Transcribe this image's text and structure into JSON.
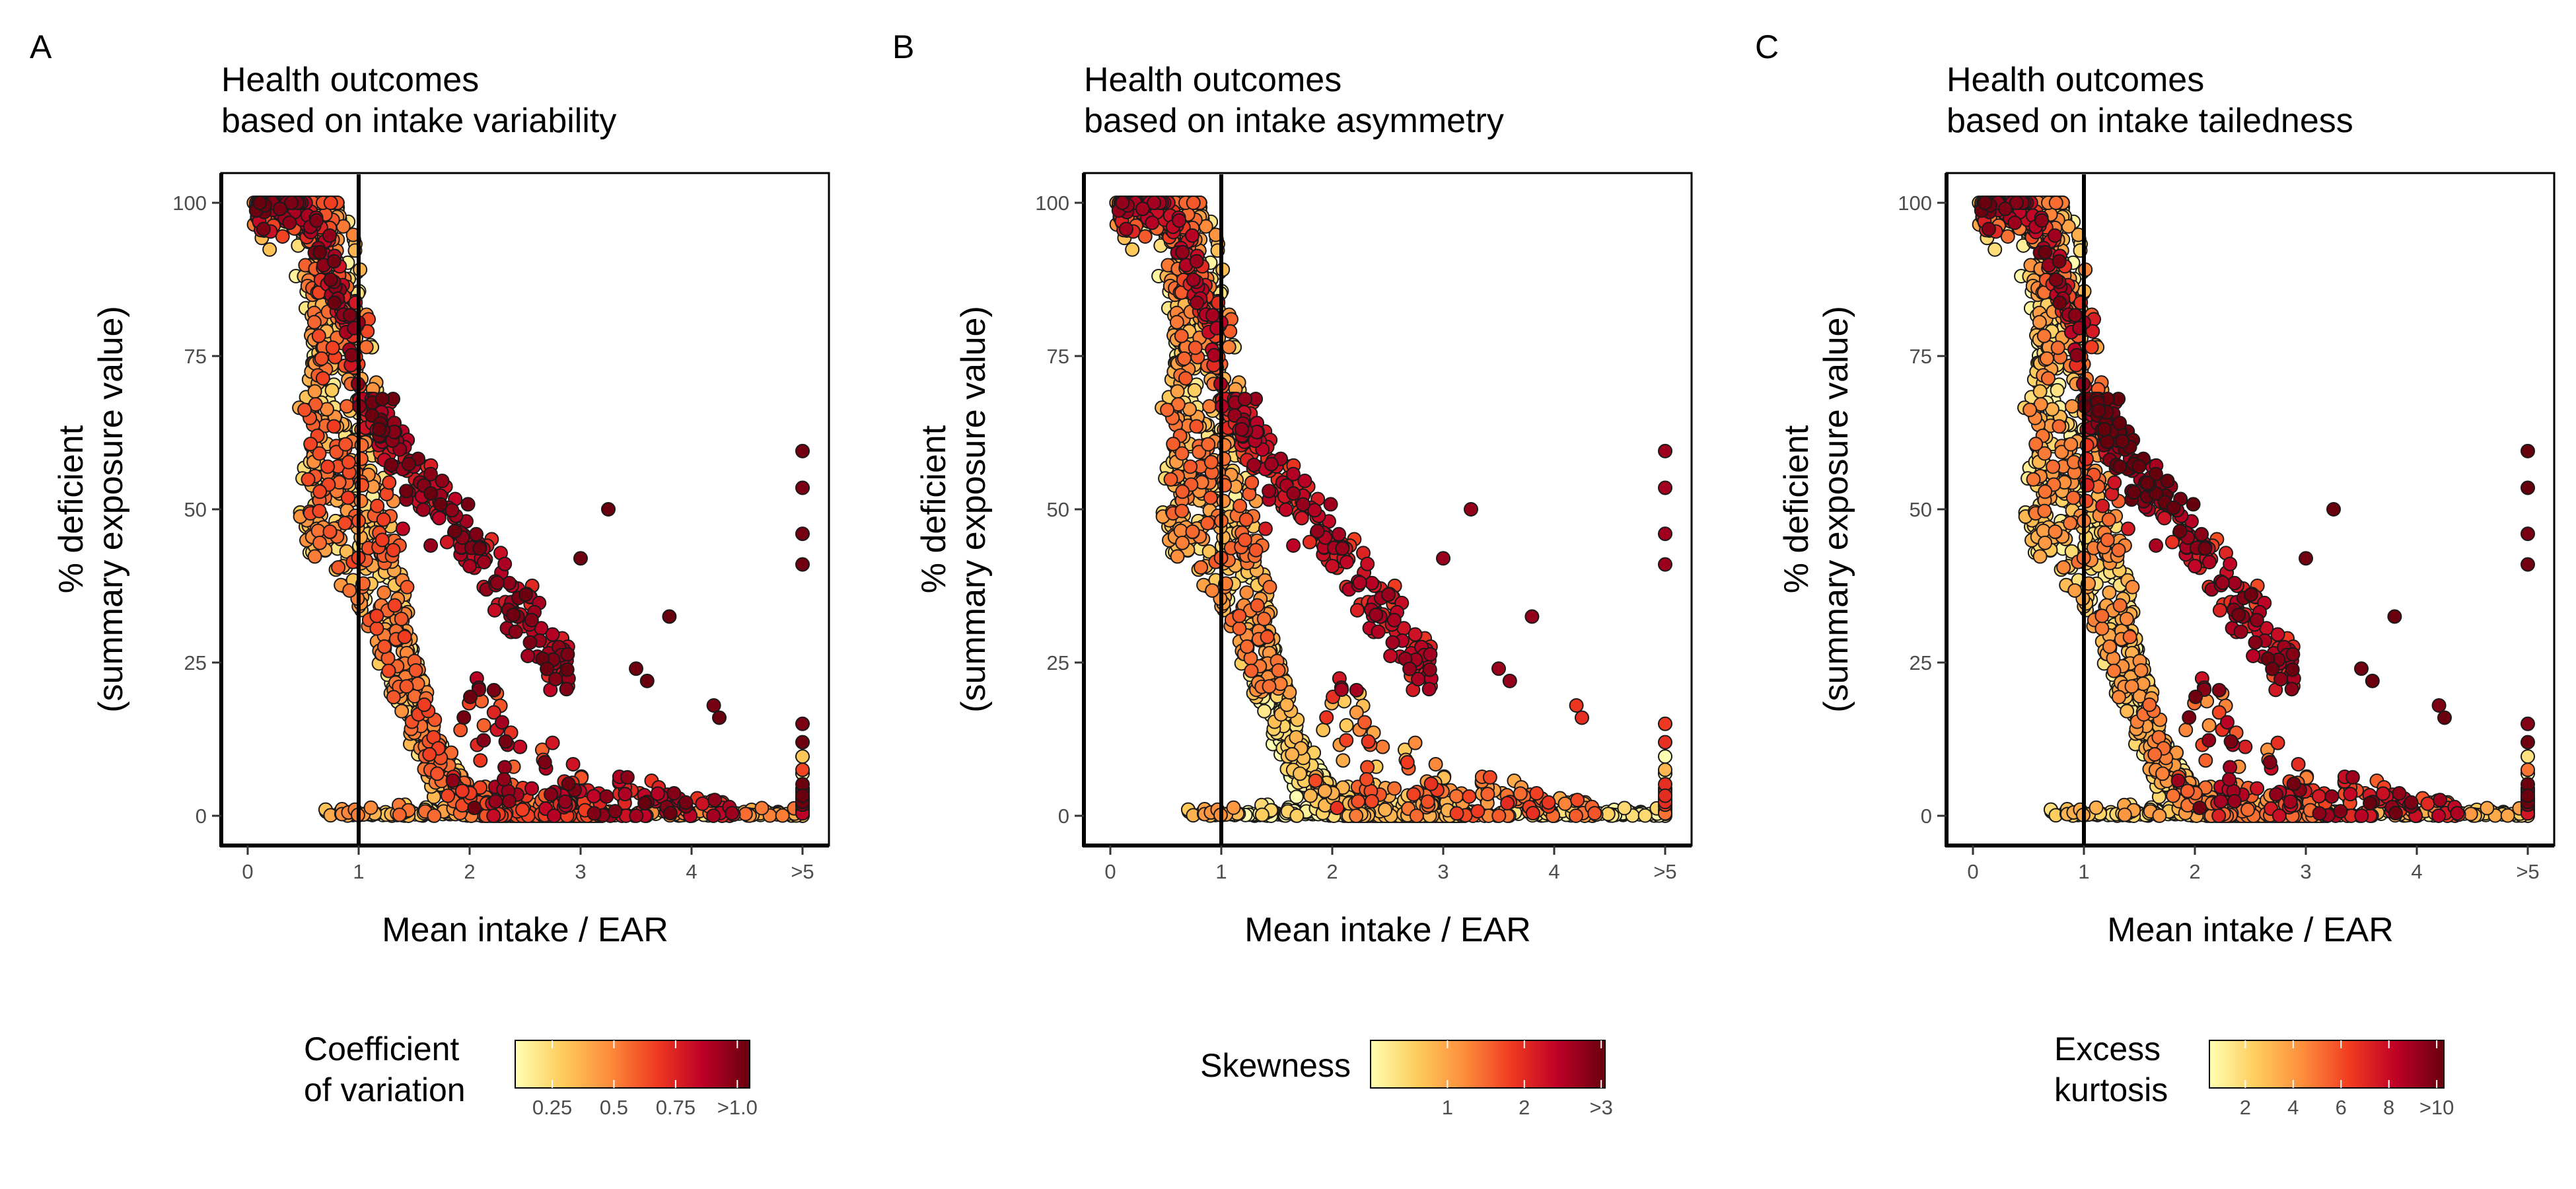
{
  "chart_data": [
    {
      "panel_label": "A",
      "type": "scatter",
      "title": "Health outcomes",
      "subtitle": "based on intake variability",
      "xlabel": "Mean intake / EAR",
      "ylabel": "% deficient",
      "ylabel_line2": "(summary exposure value)",
      "xlim": [
        0,
        5
      ],
      "ylim": [
        0,
        100
      ],
      "x_ticks": [
        0,
        1,
        2,
        3,
        4,
        5
      ],
      "x_tick_labels": [
        "0",
        "1",
        "2",
        "3",
        "4",
        ">5"
      ],
      "y_ticks": [
        0,
        25,
        50,
        75,
        100
      ],
      "y_tick_labels": [
        "0",
        "25",
        "50",
        "75",
        "100"
      ],
      "reference_line_x": 1,
      "grid": false,
      "legend_position": "bottom",
      "color_scale": {
        "title_line1": "Coefficient",
        "title_line2": "of variation",
        "colors": [
          "#FFFFB2",
          "#FECC5C",
          "#FD8D3C",
          "#F03B20",
          "#BD0026",
          "#67000D"
        ],
        "ticks": [
          0.25,
          0.5,
          0.75,
          1.0
        ],
        "tick_labels": [
          "0.25",
          "0.5",
          "0.75",
          ">1.0"
        ],
        "range": [
          0.1,
          1.05
        ],
        "mapping": "cv"
      },
      "series": [
        {
          "x": [
            0.05,
            0.15,
            0.25,
            0.35,
            0.45,
            0.55,
            0.65,
            0.75,
            0.85,
            0.95
          ],
          "y": [
            100,
            100,
            100,
            99,
            97,
            95,
            91,
            85,
            78,
            70
          ],
          "color_value": 0.9
        },
        {
          "x": [
            1.1,
            1.3,
            1.5,
            1.7,
            1.9,
            2.1,
            2.3,
            2.5
          ],
          "y": [
            60,
            55,
            50,
            44,
            38,
            32,
            27,
            22
          ],
          "color_value": 1.0
        },
        {
          "x": [
            3.25,
            3.8,
            4.2,
            5,
            5,
            5,
            5
          ],
          "y": [
            50,
            32.5,
            18,
            59.5,
            53.5,
            46,
            41
          ],
          "color_value": 1.0
        },
        {
          "x": [
            0.7,
            1.0,
            1.5,
            2.0,
            2.5,
            3.0,
            3.5,
            4.0,
            4.5,
            5
          ],
          "y": [
            0,
            0,
            0,
            0,
            0,
            0,
            0,
            0,
            0,
            0
          ],
          "color_value": 0.3
        }
      ]
    },
    {
      "panel_label": "B",
      "type": "scatter",
      "title": "Health outcomes",
      "subtitle": "based on intake asymmetry",
      "xlabel": "Mean intake / EAR",
      "ylabel": "% deficient",
      "ylabel_line2": "(summary exposure value)",
      "xlim": [
        0,
        5
      ],
      "ylim": [
        0,
        100
      ],
      "x_ticks": [
        0,
        1,
        2,
        3,
        4,
        5
      ],
      "x_tick_labels": [
        "0",
        "1",
        "2",
        "3",
        "4",
        ">5"
      ],
      "y_ticks": [
        0,
        25,
        50,
        75,
        100
      ],
      "y_tick_labels": [
        "0",
        "25",
        "50",
        "75",
        "100"
      ],
      "reference_line_x": 1,
      "grid": false,
      "legend_position": "bottom",
      "color_scale": {
        "title_line1": "Skewness",
        "title_line2": "",
        "colors": [
          "#FFFFB2",
          "#FECC5C",
          "#FD8D3C",
          "#F03B20",
          "#BD0026",
          "#67000D"
        ],
        "ticks": [
          1,
          2,
          3
        ],
        "tick_labels": [
          "1",
          "2",
          ">3"
        ],
        "range": [
          0.0,
          3.05
        ],
        "mapping": "skew"
      },
      "series": [
        {
          "x": [
            0.05,
            0.15,
            0.25,
            0.35,
            0.45,
            0.55,
            0.65,
            0.75,
            0.85,
            0.95
          ],
          "y": [
            100,
            100,
            100,
            99,
            97,
            95,
            91,
            85,
            78,
            70
          ],
          "color_value": 2.5
        },
        {
          "x": [
            1.1,
            1.3,
            1.5,
            1.7,
            1.9,
            2.1,
            2.3,
            2.5
          ],
          "y": [
            60,
            55,
            50,
            44,
            38,
            32,
            27,
            22
          ],
          "color_value": 3.0
        },
        {
          "x": [
            3.25,
            3.8,
            4.2,
            5,
            5,
            5,
            5
          ],
          "y": [
            50,
            32.5,
            18,
            59.5,
            53.5,
            46,
            41
          ],
          "color_value": 3.0
        },
        {
          "x": [
            0.7,
            1.0,
            1.5,
            2.0,
            2.5,
            3.0,
            3.5,
            4.0,
            4.5,
            5
          ],
          "y": [
            0,
            0,
            0,
            0,
            0,
            0,
            0,
            0,
            0,
            0
          ],
          "color_value": 0.5
        }
      ]
    },
    {
      "panel_label": "C",
      "type": "scatter",
      "title": "Health outcomes",
      "subtitle": "based on intake tailedness",
      "xlabel": "Mean intake / EAR",
      "ylabel": "% deficient",
      "ylabel_line2": "(summary exposure value)",
      "xlim": [
        0,
        5
      ],
      "ylim": [
        0,
        100
      ],
      "x_ticks": [
        0,
        1,
        2,
        3,
        4,
        5
      ],
      "x_tick_labels": [
        "0",
        "1",
        "2",
        "3",
        "4",
        ">5"
      ],
      "y_ticks": [
        0,
        25,
        50,
        75,
        100
      ],
      "y_tick_labels": [
        "0",
        "25",
        "50",
        "75",
        "100"
      ],
      "reference_line_x": 1,
      "grid": false,
      "legend_position": "bottom",
      "color_scale": {
        "title_line1": "Excess",
        "title_line2": "kurtosis",
        "colors": [
          "#FFFFB2",
          "#FECC5C",
          "#FD8D3C",
          "#F03B20",
          "#BD0026",
          "#67000D"
        ],
        "ticks": [
          2,
          4,
          6,
          8,
          10
        ],
        "tick_labels": [
          "2",
          "4",
          "6",
          "8",
          ">10"
        ],
        "range": [
          0.5,
          10.3
        ],
        "mapping": "kurt"
      },
      "series": [
        {
          "x": [
            0.05,
            0.15,
            0.25,
            0.35,
            0.45,
            0.55,
            0.65,
            0.75,
            0.85,
            0.95
          ],
          "y": [
            100,
            100,
            100,
            99,
            97,
            95,
            91,
            85,
            78,
            70
          ],
          "color_value": 8.0
        },
        {
          "x": [
            1.1,
            1.3,
            1.5,
            1.7,
            1.9,
            2.1,
            2.3,
            2.5
          ],
          "y": [
            60,
            55,
            50,
            44,
            38,
            32,
            27,
            22
          ],
          "color_value": 10.0
        },
        {
          "x": [
            3.25,
            3.8,
            4.2,
            5,
            5,
            5,
            5
          ],
          "y": [
            50,
            32.5,
            18,
            59.5,
            53.5,
            46,
            41
          ],
          "color_value": 10.0
        },
        {
          "x": [
            0.7,
            1.0,
            1.5,
            2.0,
            2.5,
            3.0,
            3.5,
            4.0,
            4.5,
            5
          ],
          "y": [
            0,
            0,
            0,
            0,
            0,
            0,
            0,
            0,
            0,
            0
          ],
          "color_value": 1.0
        }
      ]
    }
  ]
}
